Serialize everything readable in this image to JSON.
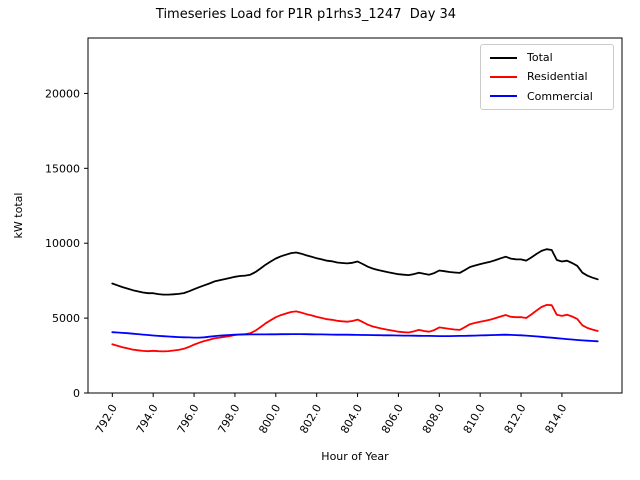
{
  "chart_data": {
    "type": "line",
    "title": "Timeseries Load for P1R p1rhs3_1247  Day 34",
    "xlabel": "Hour of Year",
    "ylabel": "kW total",
    "grid": false,
    "legend_position": "upper right",
    "xlim": [
      790.81,
      816.94
    ],
    "ylim": [
      0,
      23700
    ],
    "xticks": {
      "values": [
        792,
        794,
        796,
        798,
        800,
        802,
        804,
        806,
        808,
        810,
        812,
        814
      ],
      "labels": [
        "792.0",
        "794.0",
        "796.0",
        "798.0",
        "800.0",
        "802.0",
        "804.0",
        "806.0",
        "808.0",
        "810.0",
        "812.0",
        "814.0"
      ]
    },
    "yticks": {
      "values": [
        0,
        5000,
        10000,
        15000,
        20000
      ],
      "labels": [
        "0",
        "5000",
        "10000",
        "15000",
        "20000"
      ]
    },
    "x_start": 792.0,
    "x_step": 0.25,
    "series": [
      {
        "name": "Total",
        "color": "#000000",
        "values": [
          7310,
          7190,
          7070,
          6970,
          6860,
          6780,
          6710,
          6660,
          6660,
          6605,
          6570,
          6570,
          6590,
          6615,
          6670,
          6790,
          6930,
          7060,
          7190,
          7310,
          7450,
          7530,
          7605,
          7675,
          7760,
          7810,
          7835,
          7900,
          8070,
          8315,
          8565,
          8780,
          8980,
          9125,
          9235,
          9340,
          9380,
          9300,
          9185,
          9100,
          8995,
          8920,
          8835,
          8790,
          8715,
          8680,
          8650,
          8695,
          8780,
          8615,
          8430,
          8305,
          8210,
          8135,
          8060,
          7995,
          7930,
          7895,
          7870,
          7935,
          8030,
          7955,
          7900,
          8005,
          8180,
          8130,
          8080,
          8045,
          8020,
          8205,
          8415,
          8515,
          8605,
          8685,
          8765,
          8875,
          8995,
          9100,
          8970,
          8925,
          8920,
          8840,
          9045,
          9280,
          9490,
          9600,
          9550,
          8880,
          8780,
          8830,
          8680,
          8490,
          8030,
          7830,
          7700,
          7590
        ]
      },
      {
        "name": "Residential",
        "color": "#ff0000",
        "values": [
          3250,
          3150,
          3060,
          2980,
          2900,
          2850,
          2810,
          2790,
          2820,
          2790,
          2780,
          2800,
          2840,
          2880,
          2950,
          3080,
          3230,
          3360,
          3470,
          3550,
          3650,
          3700,
          3750,
          3800,
          3870,
          3910,
          3930,
          3990,
          4160,
          4400,
          4650,
          4860,
          5060,
          5200,
          5310,
          5410,
          5450,
          5370,
          5260,
          5180,
          5080,
          5010,
          4930,
          4890,
          4820,
          4790,
          4760,
          4810,
          4900,
          4740,
          4560,
          4440,
          4350,
          4280,
          4210,
          4150,
          4090,
          4060,
          4040,
          4110,
          4210,
          4140,
          4090,
          4200,
          4380,
          4330,
          4280,
          4240,
          4210,
          4390,
          4590,
          4680,
          4760,
          4830,
          4900,
          5000,
          5110,
          5210,
          5090,
          5060,
          5070,
          5010,
          5240,
          5500,
          5740,
          5880,
          5860,
          5220,
          5150,
          5230,
          5110,
          4950,
          4520,
          4340,
          4230,
          4140
        ]
      },
      {
        "name": "Commercial",
        "color": "#0000ff",
        "values": [
          4060,
          4040,
          4010,
          3990,
          3960,
          3930,
          3900,
          3870,
          3840,
          3815,
          3790,
          3770,
          3750,
          3735,
          3720,
          3710,
          3700,
          3700,
          3720,
          3760,
          3800,
          3830,
          3855,
          3875,
          3890,
          3900,
          3905,
          3910,
          3910,
          3915,
          3915,
          3920,
          3920,
          3925,
          3925,
          3930,
          3930,
          3930,
          3925,
          3920,
          3915,
          3910,
          3905,
          3900,
          3895,
          3890,
          3890,
          3885,
          3880,
          3875,
          3870,
          3865,
          3860,
          3855,
          3850,
          3845,
          3840,
          3835,
          3830,
          3825,
          3820,
          3815,
          3810,
          3805,
          3800,
          3800,
          3800,
          3805,
          3810,
          3815,
          3825,
          3835,
          3845,
          3855,
          3865,
          3875,
          3885,
          3890,
          3880,
          3865,
          3850,
          3830,
          3805,
          3780,
          3750,
          3720,
          3690,
          3660,
          3630,
          3600,
          3570,
          3540,
          3510,
          3490,
          3470,
          3450
        ]
      }
    ]
  }
}
